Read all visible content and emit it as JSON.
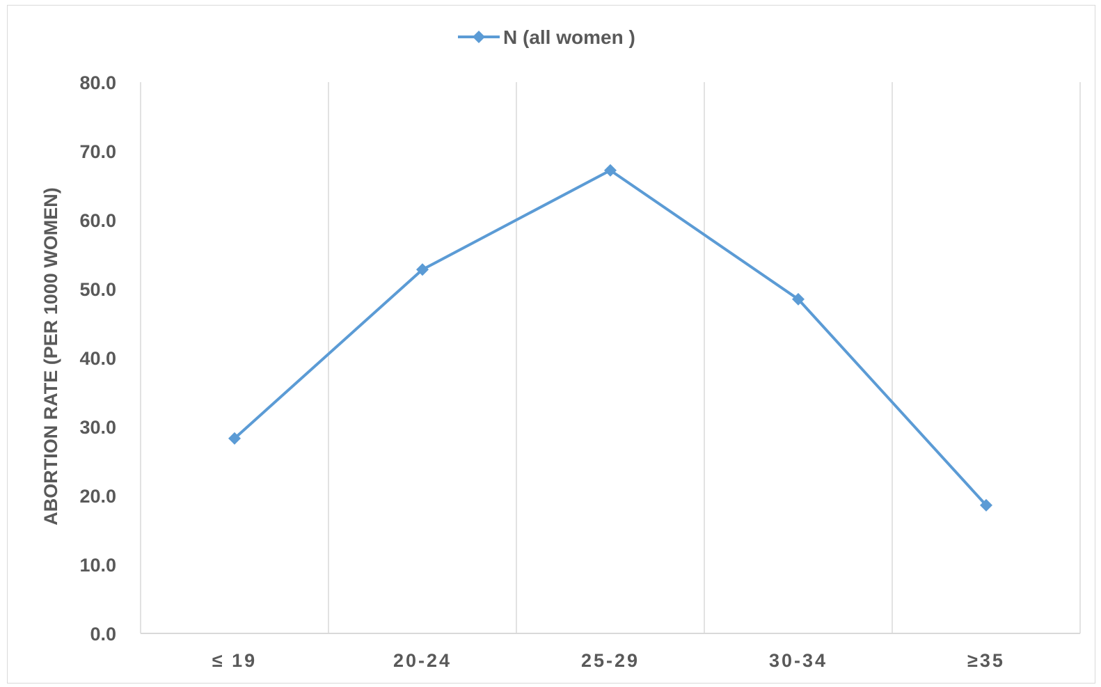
{
  "chart_data": {
    "type": "line",
    "title": "",
    "xlabel": "",
    "ylabel": "ABORTION RATE (PER 1000 WOMEN)",
    "categories": [
      "≤ 19",
      "20-24",
      "25-29",
      "30-34",
      "≥35"
    ],
    "series": [
      {
        "name": "N (all women )",
        "values": [
          28.3,
          52.8,
          67.2,
          48.5,
          18.6
        ],
        "color": "#5b9bd5",
        "marker": "diamond"
      }
    ],
    "ylim": [
      0,
      80
    ],
    "yticks": [
      "0.0",
      "10.0",
      "20.0",
      "30.0",
      "40.0",
      "50.0",
      "60.0",
      "70.0",
      "80.0"
    ],
    "grid": "vertical",
    "legend_position": "top-center",
    "colors": {
      "gridline": "#d9d9d9",
      "text": "#595959"
    }
  }
}
